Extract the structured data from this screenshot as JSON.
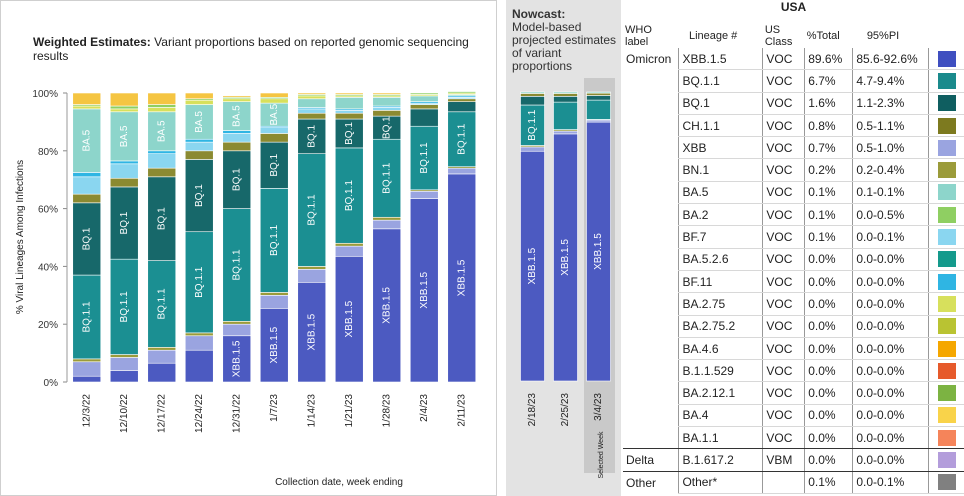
{
  "chart_data": [
    {
      "type": "stacked-bar",
      "title_bold": "Weighted Estimates:",
      "title_rest": "Variant proportions based on reported genomic sequencing results",
      "ylabel": "% Viral Lineages Among Infections",
      "xlabel": "Collection date, week ending",
      "ylim": [
        0,
        100
      ],
      "yticks": [
        "0%",
        "20%",
        "40%",
        "60%",
        "80%",
        "100%"
      ],
      "categories": [
        "12/3/22",
        "12/10/22",
        "12/17/22",
        "12/24/22",
        "12/31/22",
        "1/7/23",
        "1/14/23",
        "1/21/23",
        "1/28/23",
        "2/4/23",
        "2/11/23"
      ],
      "series": [
        {
          "name": "XBB.1.5",
          "color": "#4c5ac1",
          "values": [
            2,
            4,
            6.5,
            11,
            16,
            25.5,
            34.5,
            43.5,
            53,
            63.5,
            72
          ]
        },
        {
          "name": "XBB",
          "color": "#9aa4e0",
          "values": [
            5,
            4.5,
            4.5,
            5,
            4,
            4.5,
            4.5,
            3.5,
            3,
            2.5,
            2
          ]
        },
        {
          "name": "BN.1",
          "color": "#9b9b3a",
          "values": [
            1,
            1,
            1,
            1,
            1,
            1,
            1,
            1,
            1,
            0.5,
            0.5
          ]
        },
        {
          "name": "BQ.1.1",
          "color": "#1b8f92",
          "values": [
            29,
            33,
            30,
            35,
            39,
            36,
            39,
            33,
            27,
            22,
            19
          ]
        },
        {
          "name": "BQ.1",
          "color": "#17686a",
          "values": [
            25,
            25,
            29,
            25,
            20,
            16,
            12,
            10,
            8,
            6,
            3.5
          ]
        },
        {
          "name": "CH.1.1",
          "color": "#8b8a31",
          "values": [
            3,
            3,
            3,
            3,
            3,
            3,
            2,
            2,
            2,
            1.5,
            1
          ]
        },
        {
          "name": "BF.7",
          "color": "#8ad6f0",
          "values": [
            6,
            5,
            5,
            3,
            3,
            2,
            1.5,
            1,
            1,
            0.5,
            0.5
          ]
        },
        {
          "name": "BF.11",
          "color": "#2fb5e3",
          "values": [
            1.5,
            1,
            1,
            1,
            1,
            0.5,
            0.5,
            0.5,
            0.5,
            0.5,
            0.5
          ]
        },
        {
          "name": "BA.5",
          "color": "#8dd5cb",
          "values": [
            22,
            17,
            13.5,
            12,
            10,
            8,
            3,
            4,
            3,
            2,
            0.5
          ]
        },
        {
          "name": "BA.2.75",
          "color": "#d7e05c",
          "values": [
            1,
            1,
            1.5,
            1.5,
            1,
            1.5,
            1,
            0.5,
            0.5,
            0.5,
            0.5
          ]
        },
        {
          "name": "BA.2",
          "color": "#8fcf62",
          "values": [
            0.5,
            1,
            1,
            0.5,
            0.5,
            0.5,
            0.5,
            0.5,
            0.5,
            0.5,
            0.5
          ]
        },
        {
          "name": "Other",
          "color": "#f5c542",
          "values": [
            4,
            4.5,
            4,
            2,
            0.5,
            1.5,
            0.5,
            0.5,
            0.5,
            0,
            0
          ]
        }
      ],
      "bar_labels": [
        [
          "BQ.1.1",
          "BQ.1",
          "BA.5"
        ],
        [
          "BQ.1.1",
          "BQ.1",
          "BA.5"
        ],
        [
          "BQ.1.1",
          "BQ.1",
          "BA.5"
        ],
        [
          "BQ.1.1",
          "BQ.1",
          "BA.5"
        ],
        [
          "XBB.1.5",
          "BQ.1.1",
          "BQ.1",
          "BA.5"
        ],
        [
          "XBB.1.5",
          "BQ.1.1",
          "BQ.1",
          "BA.5"
        ],
        [
          "XBB.1.5",
          "BQ.1.1",
          "BQ.1"
        ],
        [
          "XBB.1.5",
          "BQ.1.1",
          "BQ.1"
        ],
        [
          "XBB.1.5",
          "BQ.1.1",
          "BQ.1"
        ],
        [
          "XBB.1.5",
          "BQ.1.1"
        ],
        [
          "XBB.1.5",
          "BQ.1.1"
        ]
      ]
    },
    {
      "type": "stacked-bar",
      "title_bold": "Nowcast:",
      "title_rest": "Model-based projected estimates of variant proportions",
      "categories": [
        "2/18/23",
        "2/25/23",
        "3/4/23"
      ],
      "selected_label": "Selected Week",
      "series": [
        {
          "name": "XBB.1.5",
          "color": "#4c5ac1",
          "values": [
            79.5,
            85.5,
            89.6
          ]
        },
        {
          "name": "XBB",
          "color": "#9aa4e0",
          "values": [
            1.5,
            1,
            0.7
          ]
        },
        {
          "name": "BN.1",
          "color": "#9b9b3a",
          "values": [
            0.5,
            0.5,
            0.2
          ]
        },
        {
          "name": "BQ.1.1",
          "color": "#1b8f92",
          "values": [
            14,
            9.5,
            6.7
          ]
        },
        {
          "name": "BQ.1",
          "color": "#17686a",
          "values": [
            3,
            2,
            1.6
          ]
        },
        {
          "name": "CH.1.1",
          "color": "#8b8a31",
          "values": [
            1,
            1,
            0.8
          ]
        },
        {
          "name": "Other",
          "color": "#8dd5cb",
          "values": [
            0.5,
            0.5,
            0.4
          ]
        }
      ],
      "bar_labels": [
        [
          "XBB.1.5",
          "BQ.1.1"
        ],
        [
          "XBB.1.5"
        ],
        [
          "XBB.1.5"
        ]
      ]
    }
  ],
  "table": {
    "region": "USA",
    "headers": {
      "who": "WHO label",
      "lineage": "Lineage #",
      "class": "US Class",
      "total": "%Total",
      "pi": "95%PI"
    },
    "rows": [
      {
        "who": "Omicron",
        "lineage": "XBB.1.5",
        "class": "VOC",
        "total": "89.6%",
        "pi": "85.6-92.6%",
        "color": "#3f4fc0"
      },
      {
        "who": "",
        "lineage": "BQ.1.1",
        "class": "VOC",
        "total": "6.7%",
        "pi": "4.7-9.4%",
        "color": "#1a8a8c"
      },
      {
        "who": "",
        "lineage": "BQ.1",
        "class": "VOC",
        "total": "1.6%",
        "pi": "1.1-2.3%",
        "color": "#0f5e60"
      },
      {
        "who": "",
        "lineage": "CH.1.1",
        "class": "VOC",
        "total": "0.8%",
        "pi": "0.5-1.1%",
        "color": "#7d7a1f"
      },
      {
        "who": "",
        "lineage": "XBB",
        "class": "VOC",
        "total": "0.7%",
        "pi": "0.5-1.0%",
        "color": "#9aa4e0"
      },
      {
        "who": "",
        "lineage": "BN.1",
        "class": "VOC",
        "total": "0.2%",
        "pi": "0.2-0.4%",
        "color": "#9b9b3a"
      },
      {
        "who": "",
        "lineage": "BA.5",
        "class": "VOC",
        "total": "0.1%",
        "pi": "0.1-0.1%",
        "color": "#8dd5cb"
      },
      {
        "who": "",
        "lineage": "BA.2",
        "class": "VOC",
        "total": "0.1%",
        "pi": "0.0-0.5%",
        "color": "#8fcf62"
      },
      {
        "who": "",
        "lineage": "BF.7",
        "class": "VOC",
        "total": "0.1%",
        "pi": "0.0-0.1%",
        "color": "#8ad6f0"
      },
      {
        "who": "",
        "lineage": "BA.5.2.6",
        "class": "VOC",
        "total": "0.0%",
        "pi": "0.0-0.0%",
        "color": "#149a8c"
      },
      {
        "who": "",
        "lineage": "BF.11",
        "class": "VOC",
        "total": "0.0%",
        "pi": "0.0-0.0%",
        "color": "#2fb5e3"
      },
      {
        "who": "",
        "lineage": "BA.2.75",
        "class": "VOC",
        "total": "0.0%",
        "pi": "0.0-0.0%",
        "color": "#d7e05c"
      },
      {
        "who": "",
        "lineage": "BA.2.75.2",
        "class": "VOC",
        "total": "0.0%",
        "pi": "0.0-0.0%",
        "color": "#b9c332"
      },
      {
        "who": "",
        "lineage": "BA.4.6",
        "class": "VOC",
        "total": "0.0%",
        "pi": "0.0-0.0%",
        "color": "#f5a700"
      },
      {
        "who": "",
        "lineage": "B.1.1.529",
        "class": "VOC",
        "total": "0.0%",
        "pi": "0.0-0.0%",
        "color": "#e65a2b"
      },
      {
        "who": "",
        "lineage": "BA.2.12.1",
        "class": "VOC",
        "total": "0.0%",
        "pi": "0.0-0.0%",
        "color": "#7cb342"
      },
      {
        "who": "",
        "lineage": "BA.4",
        "class": "VOC",
        "total": "0.0%",
        "pi": "0.0-0.0%",
        "color": "#f9d34a"
      },
      {
        "who": "",
        "lineage": "BA.1.1",
        "class": "VOC",
        "total": "0.0%",
        "pi": "0.0-0.0%",
        "color": "#f5845a"
      },
      {
        "who": "Delta",
        "lineage": "B.1.617.2",
        "class": "VBM",
        "total": "0.0%",
        "pi": "0.0-0.0%",
        "color": "#b39ddb"
      },
      {
        "who": "Other",
        "lineage": "Other*",
        "class": "",
        "total": "0.1%",
        "pi": "0.0-0.1%",
        "color": "#808080"
      }
    ]
  }
}
